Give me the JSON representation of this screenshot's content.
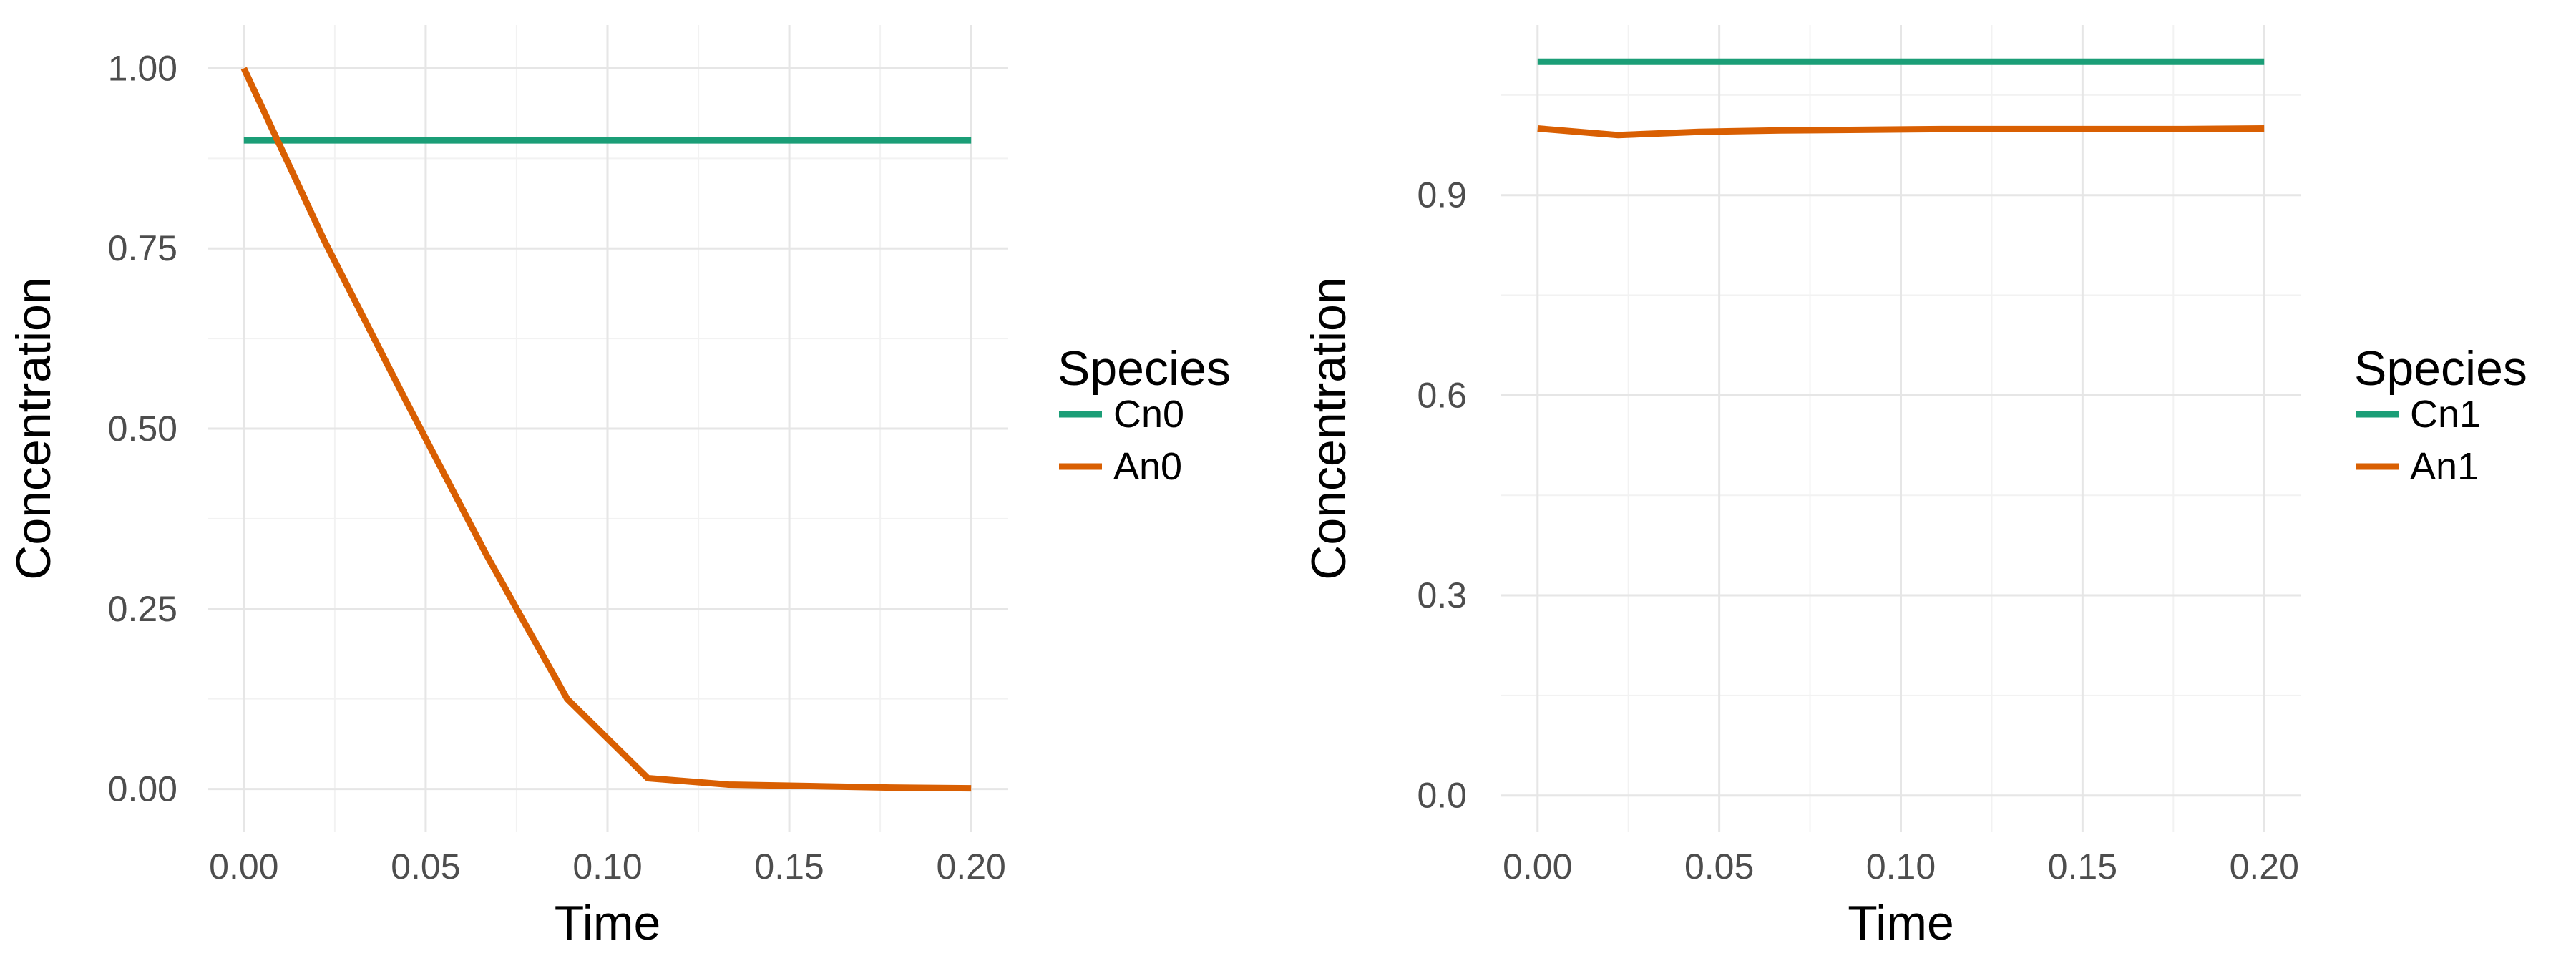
{
  "chart_data": [
    {
      "type": "line",
      "xlabel": "Time",
      "ylabel": "Concentration",
      "xlim": [
        -0.01,
        0.21
      ],
      "ylim": [
        -0.06,
        1.06
      ],
      "xticks": [
        "0.00",
        "0.05",
        "0.10",
        "0.15",
        "0.20"
      ],
      "yticks": [
        "0.00",
        "0.25",
        "0.50",
        "0.75",
        "1.00"
      ],
      "grid": true,
      "legend": {
        "title": "Species",
        "position": "right"
      },
      "series": [
        {
          "name": "Cn0",
          "color": "#1B9E77",
          "x": [
            0.0,
            0.2
          ],
          "y": [
            0.9,
            0.9
          ]
        },
        {
          "name": "An0",
          "color": "#D95F02",
          "x": [
            0.0,
            0.0222,
            0.0444,
            0.0667,
            0.0889,
            0.1111,
            0.1333,
            0.1556,
            0.1778,
            0.2
          ],
          "y": [
            1.0,
            0.76,
            0.54,
            0.325,
            0.125,
            0.015,
            0.006,
            0.004,
            0.002,
            0.001
          ]
        }
      ]
    },
    {
      "type": "line",
      "xlabel": "Time",
      "ylabel": "Concentration",
      "xlim": [
        -0.01,
        0.21
      ],
      "ylim": [
        -0.055,
        1.155
      ],
      "xticks": [
        "0.00",
        "0.05",
        "0.10",
        "0.15",
        "0.20"
      ],
      "yticks": [
        "0.0",
        "0.3",
        "0.6",
        "0.9"
      ],
      "grid": true,
      "legend": {
        "title": "Species",
        "position": "right"
      },
      "series": [
        {
          "name": "Cn1",
          "color": "#1B9E77",
          "x": [
            0.0,
            0.2
          ],
          "y": [
            1.1,
            1.1
          ]
        },
        {
          "name": "An1",
          "color": "#D95F02",
          "x": [
            0.0,
            0.0222,
            0.0444,
            0.0667,
            0.0889,
            0.1111,
            0.1333,
            0.1556,
            0.1778,
            0.2
          ],
          "y": [
            1.0,
            0.99,
            0.995,
            0.997,
            0.998,
            0.999,
            0.999,
            0.999,
            0.999,
            1.0
          ]
        }
      ]
    }
  ]
}
